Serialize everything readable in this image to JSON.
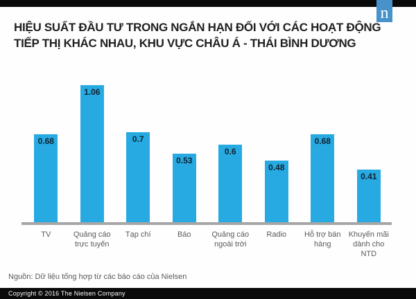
{
  "header": {
    "title_lines": [
      "HIỆU SUẤT ĐẦU TƯ TRONG NGẮN HẠN ĐỐI VỚI CÁC HOẠT ĐỘNG",
      "TIẾP THỊ KHÁC NHAU, KHU VỰC CHÂU Á - THÁI BÌNH DƯƠNG"
    ],
    "logo_letter": "n"
  },
  "chart_data": {
    "type": "bar",
    "title": "HIỆU SUẤT ĐẦU TƯ TRONG NGẮN HẠN ĐỐI VỚI CÁC HOẠT ĐỘNG TIẾP THỊ KHÁC NHAU, KHU VỰC CHÂU Á - THÁI BÌNH DƯƠNG",
    "categories": [
      "TV",
      "Quảng cáo\ntrực tuyến",
      "Tạp chí",
      "Báo",
      "Quảng cáo\nngoài trời",
      "Radio",
      "Hỗ trợ bán\nhàng",
      "Khuyến mãi\ndành cho\nNTD"
    ],
    "values": [
      0.68,
      1.06,
      0.7,
      0.53,
      0.6,
      0.48,
      0.68,
      0.41
    ],
    "xlabel": "",
    "ylabel": "",
    "ylim": [
      0,
      1.06
    ],
    "grid": false,
    "legend": false,
    "value_labels_position": "inside-top",
    "bar_color": "#27AAE1",
    "value_label_color": "#10222F",
    "axis_line_color": "#A6A6A6"
  },
  "footer": {
    "source": "Nguồn: Dữ liệu tổng hợp từ các báo cáo của Nielsen",
    "copyright": "Copyright © 2016 The Nielsen Company"
  },
  "colors": {
    "bar_blue": "#27AAE1",
    "logo_blue": "#4792C9",
    "top_bottom_bar": "#0A0A0A",
    "text_gray": "#595959",
    "title_text": "#1F1F1F"
  }
}
